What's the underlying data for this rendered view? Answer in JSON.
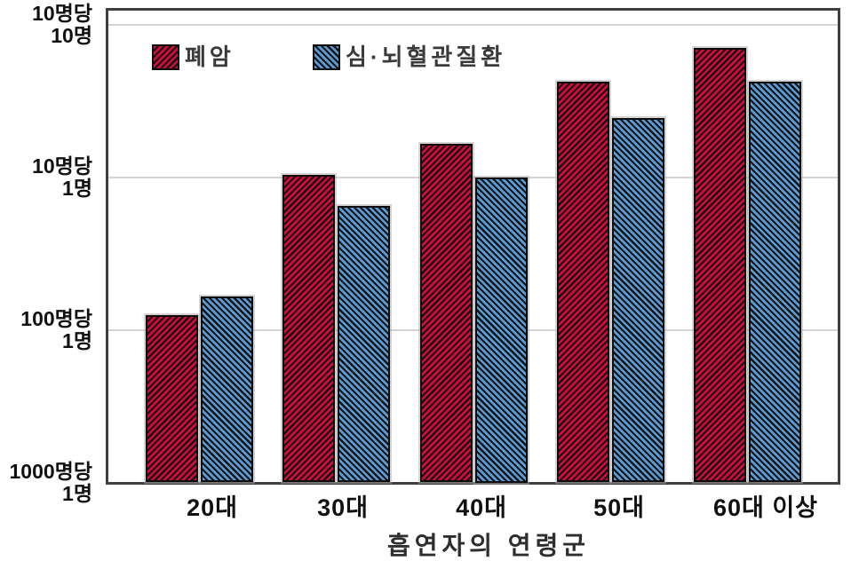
{
  "chart_data": {
    "type": "bar",
    "title": "",
    "xlabel": "흡연자의 연령군",
    "ylabel": "",
    "y_scale": "log",
    "ylim": [
      0.001,
      1.27
    ],
    "grid": "horizontal",
    "legend_position": "top-inside",
    "categories": [
      "20대",
      "30대",
      "40대",
      "50대",
      "60대 이상"
    ],
    "series": [
      {
        "name": "폐암",
        "color": "#d40a3c",
        "hatch": "/",
        "values": [
          0.0125,
          0.103,
          0.165,
          0.42,
          0.7
        ]
      },
      {
        "name": "심·뇌혈관질환",
        "color": "#5b9bd5",
        "hatch": "\\",
        "values": [
          0.0165,
          0.065,
          0.1,
          0.245,
          0.42
        ]
      }
    ],
    "y_ticks": [
      {
        "value": 1,
        "label_line1": "10명당",
        "label_line2": "10명"
      },
      {
        "value": 0.1,
        "label_line1": "10명당",
        "label_line2": "1명"
      },
      {
        "value": 0.01,
        "label_line1": "100명당",
        "label_line2": "1명"
      },
      {
        "value": 0.001,
        "label_line1": "1000명당",
        "label_line2": "1명"
      }
    ]
  },
  "colors": {
    "series_lung_cancer": "#d40a3c",
    "series_cardio_cerebro": "#5b9bd5",
    "hatch_line": "#141414",
    "grid_line": "#d4d4d4",
    "plot_border": "#3f3f3f",
    "text": "#111111"
  }
}
